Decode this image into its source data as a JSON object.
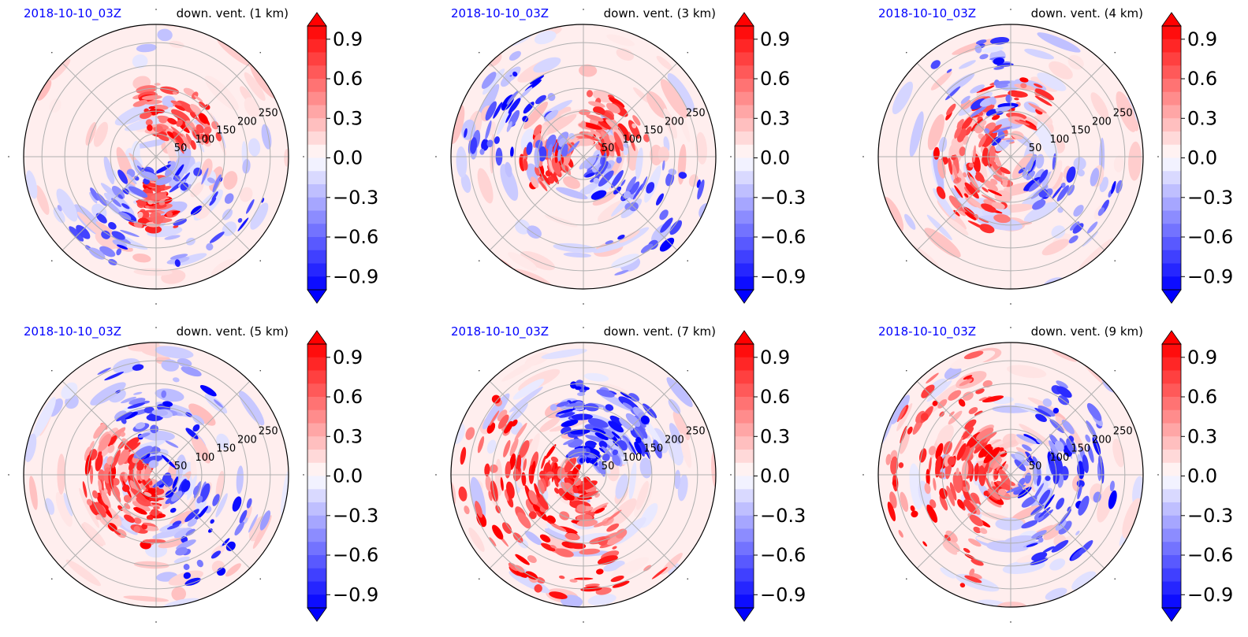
{
  "colors": {
    "positive": "#ff0000",
    "negative": "#0000ff",
    "neutral": "#ffffff",
    "date_text": "#0000ff",
    "grid": "#b0b0b0"
  },
  "chart_data": [
    {
      "type": "heatmap",
      "projection": "polar",
      "title_left": "2018-10-10_03Z",
      "title_right": "down. vent. (1 km)",
      "radial_ticks": [
        "50",
        "100",
        "150",
        "200",
        "250"
      ],
      "colorbar": {
        "ticks": [
          "0.9",
          "0.6",
          "0.3",
          "0.0",
          "−0.3",
          "−0.6",
          "−0.9"
        ],
        "vmin": -1.0,
        "vmax": 1.0,
        "extend": "both",
        "cmap": "bwr"
      }
    },
    {
      "type": "heatmap",
      "projection": "polar",
      "title_left": "2018-10-10_03Z",
      "title_right": "down. vent. (3 km)",
      "radial_ticks": [
        "50",
        "100",
        "150",
        "200",
        "250"
      ],
      "colorbar": {
        "ticks": [
          "0.9",
          "0.6",
          "0.3",
          "0.0",
          "−0.3",
          "−0.6",
          "−0.9"
        ],
        "vmin": -1.0,
        "vmax": 1.0,
        "extend": "both",
        "cmap": "bwr"
      }
    },
    {
      "type": "heatmap",
      "projection": "polar",
      "title_left": "2018-10-10_03Z",
      "title_right": "down. vent. (4 km)",
      "radial_ticks": [
        "50",
        "100",
        "150",
        "200",
        "250"
      ],
      "colorbar": {
        "ticks": [
          "0.9",
          "0.6",
          "0.3",
          "0.0",
          "−0.3",
          "−0.6",
          "−0.9"
        ],
        "vmin": -1.0,
        "vmax": 1.0,
        "extend": "both",
        "cmap": "bwr"
      }
    },
    {
      "type": "heatmap",
      "projection": "polar",
      "title_left": "2018-10-10_03Z",
      "title_right": "down. vent. (5 km)",
      "radial_ticks": [
        "50",
        "100",
        "150",
        "200",
        "250"
      ],
      "colorbar": {
        "ticks": [
          "0.9",
          "0.6",
          "0.3",
          "0.0",
          "−0.3",
          "−0.6",
          "−0.9"
        ],
        "vmin": -1.0,
        "vmax": 1.0,
        "extend": "both",
        "cmap": "bwr"
      }
    },
    {
      "type": "heatmap",
      "projection": "polar",
      "title_left": "2018-10-10_03Z",
      "title_right": "down. vent. (7 km)",
      "radial_ticks": [
        "50",
        "100",
        "150",
        "200",
        "250"
      ],
      "colorbar": {
        "ticks": [
          "0.9",
          "0.6",
          "0.3",
          "0.0",
          "−0.3",
          "−0.6",
          "−0.9"
        ],
        "vmin": -1.0,
        "vmax": 1.0,
        "extend": "both",
        "cmap": "bwr"
      }
    },
    {
      "type": "heatmap",
      "projection": "polar",
      "title_left": "2018-10-10_03Z",
      "title_right": "down. vent. (9 km)",
      "radial_ticks": [
        "50",
        "100",
        "150",
        "200",
        "250"
      ],
      "colorbar": {
        "ticks": [
          "0.9",
          "0.6",
          "0.3",
          "0.0",
          "−0.3",
          "−0.6",
          "−0.9"
        ],
        "vmin": -1.0,
        "vmax": 1.0,
        "extend": "both",
        "cmap": "bwr"
      }
    }
  ]
}
